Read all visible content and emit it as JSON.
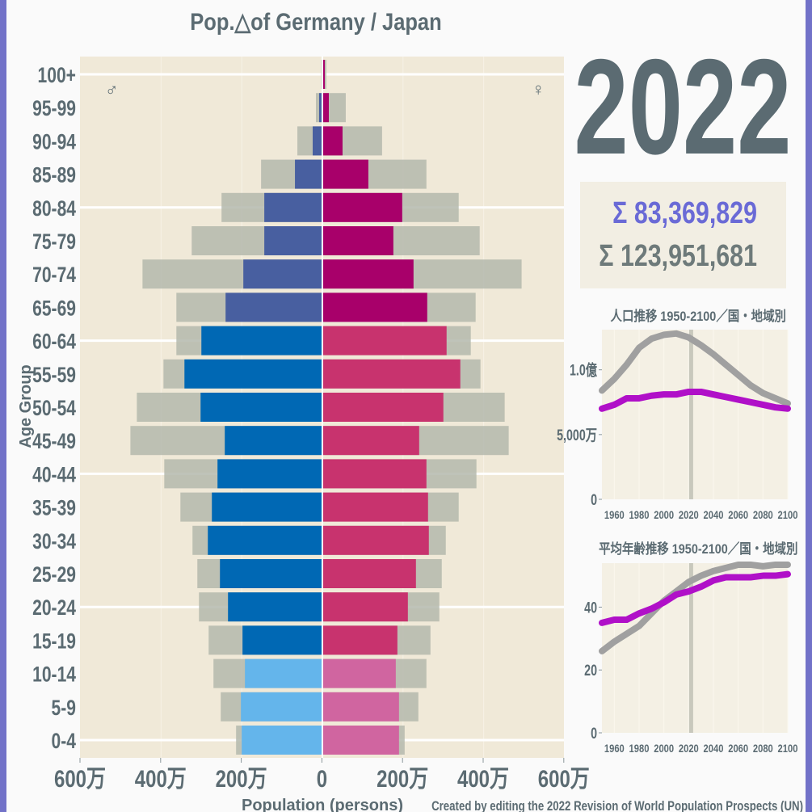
{
  "title": "Pop.△of Germany / Japan",
  "year": "2022",
  "totals": {
    "germany": "Σ 83,369,829",
    "japan": "Σ 123,951,681"
  },
  "colors": {
    "male_young": "#64b5eb",
    "male_work": "#0068b4",
    "male_old": "#485fa0",
    "female_young": "#d065a0",
    "female_work": "#c8336e",
    "female_old": "#a8006a",
    "japan": "#b4b8ad",
    "germany_line": "#b010c8",
    "japan_line": "#a0a0a0",
    "total_germany": "#6a6ad6",
    "total_japan": "#6e7a7a"
  },
  "symbols": {
    "male": "♂",
    "female": "♀"
  },
  "chart_data": [
    {
      "type": "bar",
      "title": "Pop.△of Germany / Japan",
      "orientation": "horizontal-pyramid",
      "xlabel": "Population (persons)",
      "ylabel": "Age Group",
      "xlim": [
        -6000000,
        6000000
      ],
      "x_ticks": [
        "600万",
        "400万",
        "200万",
        "0",
        "200万",
        "400万",
        "600万"
      ],
      "categories": [
        "100+",
        "95-99",
        "90-94",
        "85-89",
        "80-84",
        "75-79",
        "70-74",
        "65-69",
        "60-64",
        "55-59",
        "50-54",
        "45-49",
        "40-44",
        "35-39",
        "30-34",
        "25-29",
        "20-24",
        "15-19",
        "10-14",
        "5-9",
        "0-4"
      ],
      "series": [
        {
          "name": "Germany male",
          "values": [
            20000,
            80000,
            240000,
            680000,
            1440000,
            1440000,
            1960000,
            2400000,
            3000000,
            3420000,
            3020000,
            2420000,
            2600000,
            2740000,
            2840000,
            2540000,
            2340000,
            1980000,
            1920000,
            2020000,
            2000000
          ]
        },
        {
          "name": "Japan male",
          "values": [
            30000,
            160000,
            620000,
            1520000,
            2500000,
            3240000,
            4460000,
            3620000,
            3620000,
            3940000,
            4600000,
            4760000,
            3920000,
            3520000,
            3220000,
            3100000,
            3060000,
            2820000,
            2700000,
            2520000,
            2140000
          ]
        },
        {
          "name": "Germany female",
          "values": [
            60000,
            160000,
            500000,
            1140000,
            1980000,
            1760000,
            2260000,
            2600000,
            3080000,
            3420000,
            3000000,
            2400000,
            2580000,
            2620000,
            2640000,
            2320000,
            2120000,
            1860000,
            1820000,
            1900000,
            1900000
          ]
        },
        {
          "name": "Japan female",
          "values": [
            100000,
            580000,
            1480000,
            2580000,
            3380000,
            3900000,
            4940000,
            3800000,
            3680000,
            3920000,
            4520000,
            4620000,
            3820000,
            3380000,
            3060000,
            2960000,
            2900000,
            2680000,
            2580000,
            2380000,
            2040000
          ]
        }
      ],
      "gridlines_every_20_years": [
        "100+",
        "80-84",
        "60-64",
        "40-44",
        "20-24",
        "0-4"
      ]
    },
    {
      "type": "line",
      "title": "人口推移 1950-2100／国・地域別",
      "x": [
        1950,
        1960,
        1970,
        1980,
        1990,
        2000,
        2010,
        2020,
        2030,
        2040,
        2050,
        2060,
        2070,
        2080,
        2090,
        2100
      ],
      "x_ticks": [
        "1960",
        "1980",
        "2000",
        "2020",
        "2040",
        "2060",
        "2080",
        "2100"
      ],
      "y_ticks": [
        "0",
        "5,000万",
        "1.0億"
      ],
      "xlim": [
        1950,
        2100
      ],
      "ylim": [
        0,
        131000000
      ],
      "current_year_marker": 2022,
      "series": [
        {
          "key": "japan",
          "values": [
            84000000,
            93000000,
            104000000,
            117000000,
            124000000,
            127000000,
            128000000,
            125000000,
            119000000,
            112000000,
            104000000,
            96000000,
            88000000,
            82000000,
            78000000,
            74000000
          ]
        },
        {
          "key": "germany",
          "values": [
            70000000,
            73000000,
            78000000,
            78000000,
            80000000,
            81000000,
            81000000,
            83000000,
            83000000,
            81000000,
            79000000,
            77000000,
            75000000,
            73000000,
            71000000,
            70000000
          ]
        }
      ]
    },
    {
      "type": "line",
      "title": "平均年齢推移 1950-2100／国・地域別",
      "x": [
        1950,
        1960,
        1970,
        1980,
        1990,
        2000,
        2010,
        2020,
        2030,
        2040,
        2050,
        2060,
        2070,
        2080,
        2090,
        2100
      ],
      "x_ticks": [
        "1960",
        "1980",
        "2000",
        "2020",
        "2040",
        "2060",
        "2080",
        "2100"
      ],
      "y_ticks": [
        "0",
        "20",
        "40"
      ],
      "xlim": [
        1950,
        2100
      ],
      "ylim": [
        0,
        54
      ],
      "current_year_marker": 2022,
      "series": [
        {
          "key": "japan",
          "values": [
            26,
            29,
            31.5,
            34,
            38,
            42,
            45,
            48,
            50,
            51.5,
            52.5,
            53.5,
            53.5,
            53,
            53.5,
            53.5
          ]
        },
        {
          "key": "germany",
          "values": [
            35,
            36,
            36,
            38,
            39.5,
            41.5,
            44,
            45,
            46.5,
            48.5,
            49.5,
            49.5,
            49.5,
            50,
            50,
            50.5
          ]
        }
      ]
    }
  ],
  "credit": "Created by editing the 2022 Revision of World Population Prospects (UN)"
}
